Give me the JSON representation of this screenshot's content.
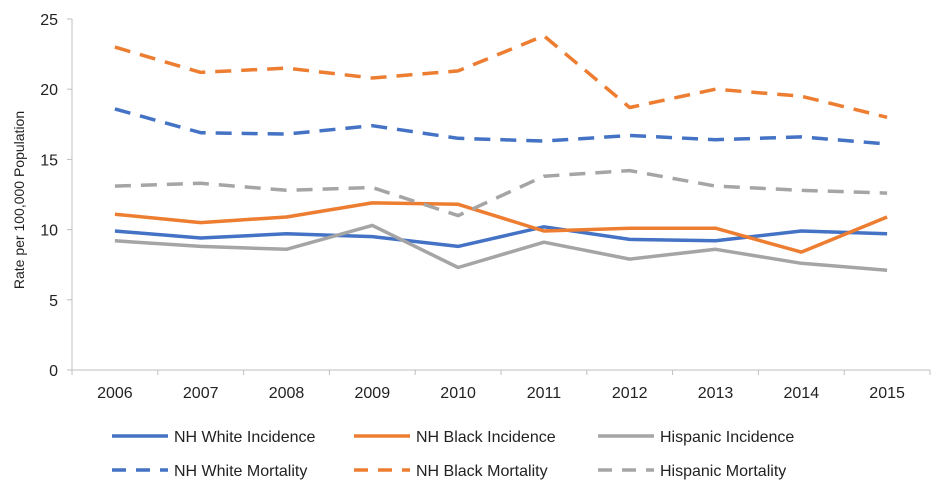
{
  "chart_data": {
    "type": "line",
    "title": "",
    "xlabel": "",
    "ylabel": "Rate per 100,000 Population",
    "categories": [
      "2006",
      "2007",
      "2008",
      "2009",
      "2010",
      "2011",
      "2012",
      "2013",
      "2014",
      "2015"
    ],
    "ylim": [
      0,
      25
    ],
    "yticks": [
      0,
      5,
      10,
      15,
      20,
      25
    ],
    "grid": false,
    "legend_position": "bottom",
    "series": [
      {
        "name": "NH White Incidence",
        "style": "solid",
        "color": "#4472C4",
        "values": [
          9.9,
          9.4,
          9.7,
          9.5,
          8.8,
          10.2,
          9.3,
          9.2,
          9.9,
          9.7
        ]
      },
      {
        "name": "NH Black Incidence",
        "style": "solid",
        "color": "#ED7D31",
        "values": [
          11.1,
          10.5,
          10.9,
          11.9,
          11.8,
          9.9,
          10.1,
          10.1,
          8.4,
          10.9
        ]
      },
      {
        "name": "Hispanic Incidence",
        "style": "solid",
        "color": "#A5A5A5",
        "values": [
          9.2,
          8.8,
          8.6,
          10.3,
          7.3,
          9.1,
          7.9,
          8.6,
          7.6,
          7.1
        ]
      },
      {
        "name": "NH White Mortality",
        "style": "dashed",
        "color": "#4472C4",
        "values": [
          18.6,
          16.9,
          16.8,
          17.4,
          16.5,
          16.3,
          16.7,
          16.4,
          16.6,
          16.1
        ]
      },
      {
        "name": "NH Black Mortality",
        "style": "dashed",
        "color": "#ED7D31",
        "values": [
          23.0,
          21.2,
          21.5,
          20.8,
          21.3,
          23.8,
          18.7,
          20.0,
          19.5,
          18.0
        ]
      },
      {
        "name": "Hispanic Mortality",
        "style": "dashed",
        "color": "#A5A5A5",
        "values": [
          13.1,
          13.3,
          12.8,
          13.0,
          11.0,
          13.8,
          14.2,
          13.1,
          12.8,
          12.6
        ]
      }
    ]
  }
}
